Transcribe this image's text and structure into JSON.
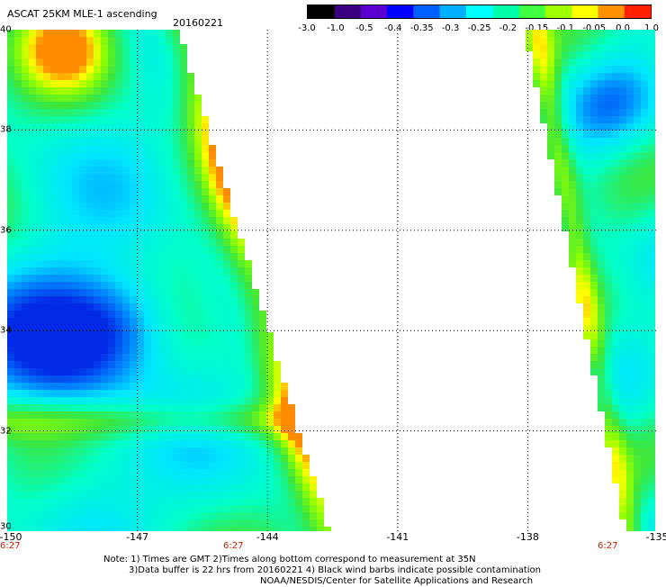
{
  "header": {
    "title": "ASCAT 25KM MLE-1 ascending",
    "date": "20160221"
  },
  "colorbar": {
    "labels": [
      "-3.0",
      "-1.0",
      "-0.5",
      "-0.4",
      "-0.35",
      "-0.3",
      "-0.25",
      "-0.2",
      "-0.15",
      "-0.1",
      "-0.05",
      "0.0",
      "1.0"
    ],
    "colors": [
      "#000000",
      "#3a0080",
      "#5a00d0",
      "#0000ff",
      "#0060ff",
      "#00b0ff",
      "#00ffff",
      "#00ffaa",
      "#40ff40",
      "#a0ff00",
      "#ffff00",
      "#ff9000",
      "#ff2000"
    ]
  },
  "axes": {
    "x_ticks": [
      "-150",
      "-147",
      "-144",
      "-141",
      "-138",
      "-135"
    ],
    "y_ticks": [
      "40",
      "38",
      "36",
      "34",
      "32",
      "30"
    ],
    "time_labels": [
      "6:27",
      "6:27",
      "6:27"
    ]
  },
  "notes": {
    "line1": "Note: 1) Times are GMT 2)Times along bottom correspond to measurement at 35N",
    "line2": "3)Data buffer is 22 hrs from 20160221 4) Black wind barbs indicate possible contamination",
    "line3": "NOAA/NESDIS/Center for Satellite Applications and Research"
  },
  "map_data": {
    "lon_range": [
      -150,
      -135
    ],
    "lat_range": [
      30,
      40
    ],
    "grid_lons": [
      -147,
      -144,
      -141,
      -138
    ],
    "grid_lats": [
      38,
      36,
      34,
      32
    ]
  }
}
